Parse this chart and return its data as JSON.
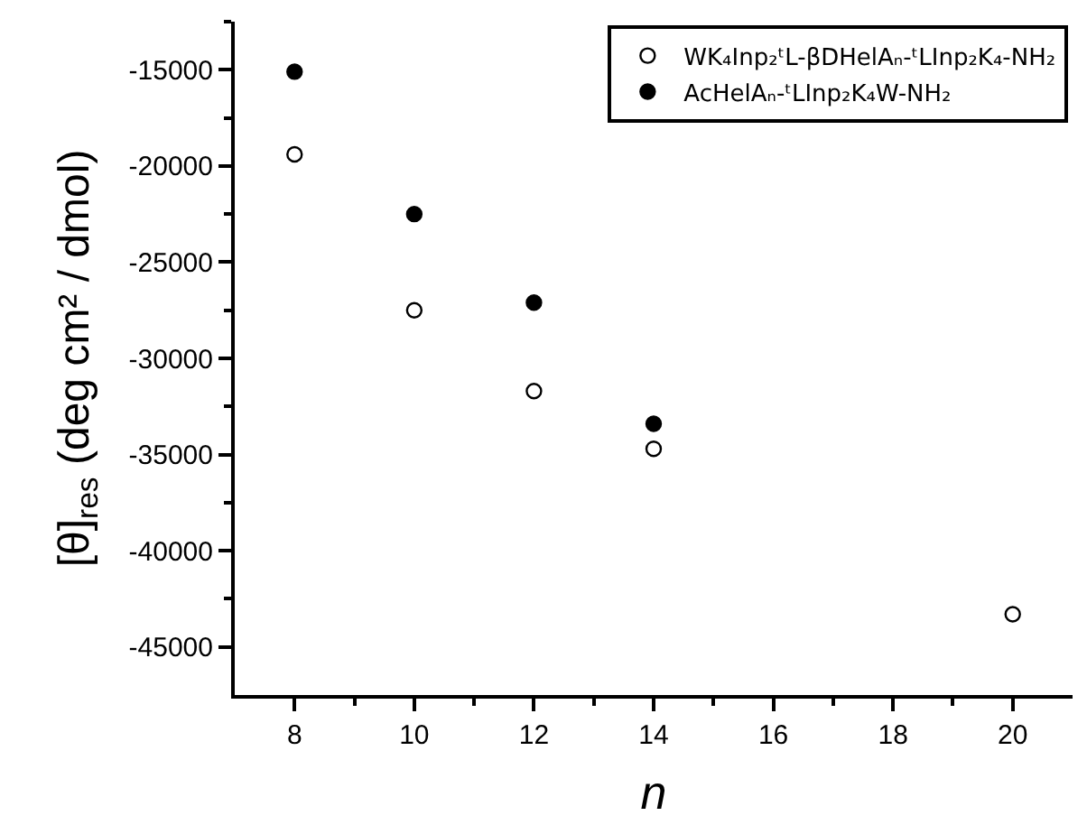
{
  "chart_data": {
    "type": "scatter",
    "xlabel": "n",
    "ylabel": "[θ]$_{res}$ (deg cm² / dmol)",
    "xlim": [
      7,
      21
    ],
    "ylim": [
      -47500,
      -12500
    ],
    "xticks": [
      8,
      {
        "value": 9,
        "label": null
      },
      10,
      {
        "value": 11,
        "label": null
      },
      12,
      {
        "value": 13,
        "label": null
      },
      14,
      {
        "value": 15,
        "label": null
      },
      16,
      {
        "value": 17,
        "label": null
      },
      18,
      {
        "value": 19,
        "label": null
      },
      20
    ],
    "yticks": [
      -45000,
      {
        "value": -42500,
        "label": null
      },
      -40000,
      {
        "value": -37500,
        "label": null
      },
      -35000,
      {
        "value": -32500,
        "label": null
      },
      -30000,
      {
        "value": -27500,
        "label": null
      },
      -25000,
      {
        "value": -22500,
        "label": null
      },
      -20000,
      {
        "value": -17500,
        "label": null
      },
      -15000,
      {
        "value": -12500,
        "label": null
      }
    ],
    "marker": "circle",
    "legend": "top right",
    "series": [
      {
        "name": "WK₄Inp₂ᵗL-βDHelAₙ-ᵗLInp₂K₄-NH₂",
        "color": "#ffffff",
        "x": [
          8,
          10,
          12,
          14,
          20
        ],
        "values": [
          -19400,
          -27500,
          -31700,
          -34700,
          -43300
        ]
      },
      {
        "name": "AcHelAₙ-ᵗLInp₂K₄W-NH₂",
        "color": "#000000",
        "x": [
          8,
          10,
          12,
          14
        ],
        "values": [
          -15100,
          -22500,
          -27100,
          -33400
        ]
      }
    ]
  }
}
